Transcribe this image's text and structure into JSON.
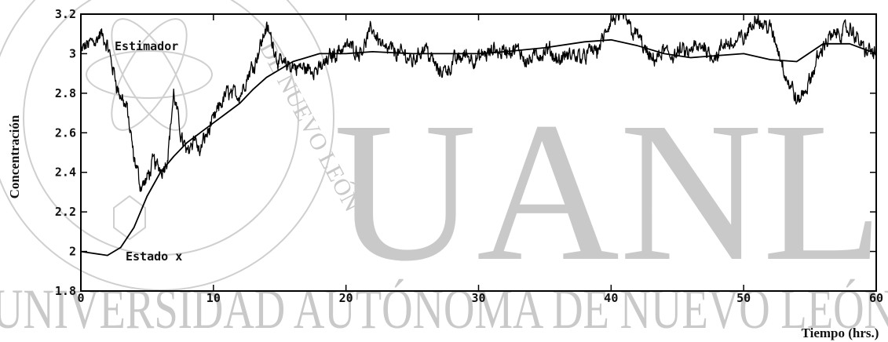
{
  "watermark": {
    "big_text": "UANL",
    "bottom_text": "UNIVERSIDAD AUTÓNOMA DE NUEVO LEÓN",
    "seal_text": "DE NUEVO LEÓN",
    "color": "#c9c9c9"
  },
  "chart_data": {
    "type": "line",
    "title": "",
    "xlabel": "Tiempo (hrs.)",
    "ylabel": "Concentración",
    "xlim": [
      0,
      60
    ],
    "ylim": [
      1.8,
      3.2
    ],
    "xticks": [
      0,
      10,
      20,
      30,
      40,
      50,
      60
    ],
    "xtick_labels": [
      "0",
      "10",
      "20",
      "30",
      "40",
      "50",
      "60"
    ],
    "yticks": [
      1.8,
      2.0,
      2.2,
      2.4,
      2.6,
      2.8,
      3.0,
      3.2
    ],
    "ytick_labels": [
      "1.8",
      "2",
      "2.2",
      "2.4",
      "2.6",
      "2.8",
      "3",
      "3.2"
    ],
    "grid": false,
    "annotations": [
      {
        "text": "Estimador",
        "x": 2.5,
        "y": 3.03
      },
      {
        "text": "Estado x",
        "x": 3.4,
        "y": 1.96
      }
    ],
    "series": [
      {
        "name": "Estimador",
        "color": "#000000",
        "noisy": true,
        "x": [
          0,
          0.5,
          1,
          1.5,
          2,
          2.5,
          3,
          3.5,
          4,
          4.5,
          5,
          5.5,
          6,
          6.5,
          7,
          7.5,
          8,
          8.5,
          9,
          9.5,
          10,
          11,
          12,
          13,
          14,
          14.5,
          15,
          16,
          17,
          18,
          19,
          20,
          21,
          22,
          23,
          24,
          25,
          26,
          27,
          28,
          29,
          30,
          31,
          32,
          33,
          34,
          35,
          36,
          37,
          38,
          39,
          40,
          41,
          42,
          43,
          44,
          45,
          46,
          47,
          48,
          49,
          50,
          51,
          52,
          53,
          54,
          55,
          56,
          57,
          58,
          59,
          60
        ],
        "y": [
          3.0,
          3.04,
          3.08,
          3.1,
          3.02,
          2.9,
          2.78,
          2.72,
          2.45,
          2.33,
          2.36,
          2.45,
          2.42,
          2.47,
          2.8,
          2.6,
          2.5,
          2.6,
          2.5,
          2.6,
          2.65,
          2.8,
          2.8,
          2.95,
          3.14,
          3.05,
          2.95,
          2.93,
          2.92,
          2.92,
          3.0,
          3.05,
          3.02,
          3.12,
          3.03,
          3.0,
          2.97,
          3.05,
          2.9,
          2.95,
          3.0,
          2.97,
          3.0,
          3.02,
          3.0,
          2.98,
          3.0,
          2.97,
          2.98,
          3.0,
          3.02,
          3.15,
          3.18,
          3.1,
          2.95,
          3.0,
          3.0,
          3.0,
          3.03,
          3.0,
          3.05,
          3.08,
          3.18,
          3.13,
          2.93,
          2.75,
          2.85,
          3.05,
          3.1,
          3.12,
          3.03,
          3.0
        ]
      },
      {
        "name": "Estado x",
        "color": "#000000",
        "noisy": false,
        "x": [
          0,
          1,
          2,
          3,
          4,
          5,
          6,
          7,
          8,
          9,
          10,
          11,
          12,
          13,
          14,
          15,
          16,
          17,
          18,
          20,
          22,
          25,
          28,
          30,
          32,
          35,
          38,
          40,
          42,
          44,
          46,
          48,
          50,
          52,
          54,
          56,
          58,
          60
        ],
        "y": [
          2.0,
          1.99,
          1.98,
          2.02,
          2.12,
          2.28,
          2.4,
          2.48,
          2.55,
          2.6,
          2.65,
          2.7,
          2.75,
          2.82,
          2.88,
          2.92,
          2.96,
          2.98,
          3.0,
          3.0,
          3.01,
          3.0,
          3.0,
          3.0,
          3.01,
          3.03,
          3.06,
          3.07,
          3.04,
          3.0,
          2.98,
          2.99,
          3.0,
          2.97,
          2.96,
          3.05,
          3.05,
          3.0
        ]
      }
    ]
  }
}
